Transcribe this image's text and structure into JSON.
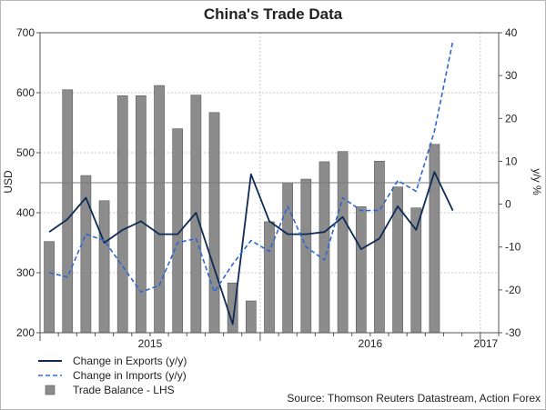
{
  "chart_data": {
    "type": "bar+line",
    "title": "China's Trade Data",
    "ylabel_left": "USD",
    "ylabel_right": "y/y %",
    "ylim_left": [
      200,
      700
    ],
    "ylim_right": [
      -30,
      40
    ],
    "yticks_left": [
      200,
      300,
      400,
      500,
      600,
      700
    ],
    "yticks_right": [
      -30,
      -20,
      -10,
      0,
      10,
      20,
      30,
      40
    ],
    "xtick_labels": [
      "2015",
      "2016",
      "2017"
    ],
    "reference_line_right": 5,
    "grid": true,
    "legend_position": "bottom-left",
    "periods": 25,
    "series": [
      {
        "name": "Trade Balance - LHS",
        "kind": "bar",
        "axis": "left",
        "color": "#8c8c8c",
        "values": [
          352,
          605,
          462,
          420,
          595,
          595,
          612,
          540,
          596,
          567,
          283,
          253,
          385,
          450,
          456,
          485,
          502,
          410,
          486,
          443,
          408,
          514,
          null,
          null,
          null
        ]
      },
      {
        "name": "Change in Exports (y/y)",
        "kind": "line",
        "axis": "right",
        "color": "#0d2b55",
        "values": [
          -6.5,
          -3.5,
          1.5,
          -9,
          -6,
          -4,
          -7,
          -7,
          -2,
          -15,
          -28,
          7,
          -4,
          -7,
          -7,
          -6.5,
          -3,
          -10.5,
          -8,
          -0.5,
          -6,
          7.5,
          -1.5
        ]
      },
      {
        "name": "Change in Imports (y/y)",
        "kind": "line",
        "axis": "right",
        "color": "#2e67d1",
        "values": [
          -16,
          -17,
          -7,
          -8.5,
          -14.5,
          -20.5,
          -19,
          -9,
          -8,
          -20.5,
          -14,
          -8.5,
          -11,
          -0.5,
          -10,
          -13,
          1.5,
          -1.5,
          -1.5,
          5.5,
          3,
          17,
          38
        ]
      }
    ]
  },
  "legend": {
    "exports_label": "Change in Exports (y/y)",
    "imports_label": "Change in Imports (y/y)",
    "balance_label": "Trade Balance - LHS"
  },
  "source_text": "Source: Thomson Reuters Datastream, Action Forex"
}
